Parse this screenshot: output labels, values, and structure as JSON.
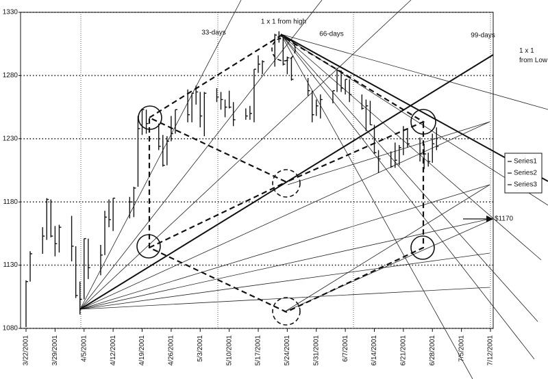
{
  "chart_data": {
    "type": "stock",
    "x": [
      "2001-03-22",
      "2001-03-23",
      "2001-03-26",
      "2001-03-27",
      "2001-03-28",
      "2001-03-29",
      "2001-03-30",
      "2001-04-02",
      "2001-04-03",
      "2001-04-04",
      "2001-04-05",
      "2001-04-06",
      "2001-04-09",
      "2001-04-10",
      "2001-04-11",
      "2001-04-12",
      "2001-04-16",
      "2001-04-17",
      "2001-04-18",
      "2001-04-19",
      "2001-04-20",
      "2001-04-23",
      "2001-04-24",
      "2001-04-25",
      "2001-04-26",
      "2001-04-27",
      "2001-04-30",
      "2001-05-01",
      "2001-05-02",
      "2001-05-03",
      "2001-05-04",
      "2001-05-07",
      "2001-05-08",
      "2001-05-09",
      "2001-05-10",
      "2001-05-11",
      "2001-05-14",
      "2001-05-15",
      "2001-05-16",
      "2001-05-17",
      "2001-05-18",
      "2001-05-21",
      "2001-05-22",
      "2001-05-23",
      "2001-05-24",
      "2001-05-25",
      "2001-05-29",
      "2001-05-30",
      "2001-05-31",
      "2001-06-01",
      "2001-06-04",
      "2001-06-05",
      "2001-06-06",
      "2001-06-07",
      "2001-06-08",
      "2001-06-11",
      "2001-06-12",
      "2001-06-13",
      "2001-06-14",
      "2001-06-15",
      "2001-06-18",
      "2001-06-19",
      "2001-06-20",
      "2001-06-21",
      "2001-06-22",
      "2001-06-25",
      "2001-06-26",
      "2001-06-27",
      "2001-06-28",
      "2001-06-29"
    ],
    "series": [
      {
        "name": "Series1",
        "color": "#111111",
        "values": [
          1118,
          1141,
          1160,
          1183,
          1182,
          1161,
          1162,
          1169,
          1145,
          1117,
          1151,
          1151,
          1146,
          1173,
          1182,
          1183,
          1184,
          1192,
          1248,
          1253,
          1253,
          1242,
          1233,
          1232,
          1248,
          1253,
          1269,
          1266,
          1272,
          1267,
          1267,
          1270,
          1267,
          1261,
          1268,
          1259,
          1254,
          1256,
          1285,
          1296,
          1292,
          1313,
          1315,
          1310,
          1295,
          1294,
          1278,
          1268,
          1261,
          1265,
          1268,
          1286,
          1284,
          1277,
          1277,
          1265,
          1261,
          1260,
          1241,
          1221,
          1220,
          1227,
          1225,
          1240,
          1238,
          1231,
          1226,
          1219,
          1234,
          1239
        ]
      },
      {
        "name": "Series2",
        "color": "#111111",
        "values": [
          1081,
          1117,
          1139,
          1150,
          1152,
          1137,
          1140,
          1133,
          1104,
          1091,
          1103,
          1119,
          1122,
          1138,
          1160,
          1157,
          1167,
          1168,
          1192,
          1233,
          1234,
          1221,
          1208,
          1209,
          1228,
          1234,
          1243,
          1243,
          1257,
          1239,
          1232,
          1259,
          1253,
          1247,
          1254,
          1240,
          1245,
          1245,
          1243,
          1282,
          1281,
          1287,
          1306,
          1288,
          1281,
          1276,
          1264,
          1243,
          1248,
          1246,
          1258,
          1267,
          1267,
          1265,
          1259,
          1253,
          1236,
          1241,
          1218,
          1203,
          1207,
          1207,
          1209,
          1217,
          1223,
          1212,
          1206,
          1208,
          1211,
          1221
        ]
      },
      {
        "name": "Series3",
        "color": "#111111",
        "values": [
          1117,
          1139,
          1153,
          1182,
          1153,
          1147,
          1160,
          1145,
          1106,
          1103,
          1151,
          1128,
          1138,
          1168,
          1166,
          1183,
          1180,
          1191,
          1238,
          1253,
          1242,
          1224,
          1209,
          1228,
          1234,
          1253,
          1249,
          1266,
          1267,
          1248,
          1266,
          1263,
          1261,
          1255,
          1255,
          1245,
          1248,
          1250,
          1285,
          1289,
          1291,
          1312,
          1309,
          1289,
          1294,
          1277,
          1268,
          1249,
          1256,
          1261,
          1268,
          1284,
          1270,
          1277,
          1265,
          1254,
          1256,
          1241,
          1219,
          1214,
          1208,
          1213,
          1223,
          1237,
          1226,
          1218,
          1218,
          1212,
          1226,
          1224
        ]
      }
    ],
    "xlim": [
      "2001-03-22",
      "2001-07-12"
    ],
    "xticks": [
      {
        "value": "2001-03-22",
        "label": "3/22/2001"
      },
      {
        "value": "2001-03-29",
        "label": "3/29/2001"
      },
      {
        "value": "2001-04-05",
        "label": "4/5/2001"
      },
      {
        "value": "2001-04-12",
        "label": "4/12/2001"
      },
      {
        "value": "2001-04-19",
        "label": "4/19/2001"
      },
      {
        "value": "2001-04-26",
        "label": "4/26/2001"
      },
      {
        "value": "2001-05-03",
        "label": "5/3/2001"
      },
      {
        "value": "2001-05-10",
        "label": "5/10/2001"
      },
      {
        "value": "2001-05-17",
        "label": "5/17/2001"
      },
      {
        "value": "2001-05-24",
        "label": "5/24/2001"
      },
      {
        "value": "2001-05-31",
        "label": "5/31/2001"
      },
      {
        "value": "2001-06-07",
        "label": "6/7/2001"
      },
      {
        "value": "2001-06-14",
        "label": "6/14/2001"
      },
      {
        "value": "2001-06-21",
        "label": "6/21/2001"
      },
      {
        "value": "2001-06-28",
        "label": "6/28/2001"
      },
      {
        "value": "2001-07-05",
        "label": "7/5/2001"
      },
      {
        "value": "2001-07-12",
        "label": "7/12/2001"
      }
    ],
    "ylim": [
      1080,
      1330
    ],
    "yticks": [
      1080,
      1130,
      1180,
      1230,
      1280,
      1330
    ],
    "grid": true,
    "annotations": {
      "days33": "33-days",
      "high": "1 x 1 from high",
      "days66": "66-days",
      "days99": "99-days",
      "low": "1 x 1 from Low",
      "price": "$1170"
    }
  }
}
